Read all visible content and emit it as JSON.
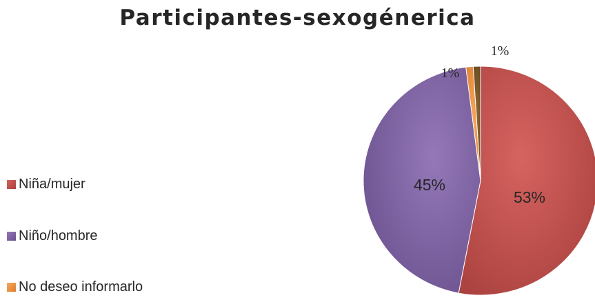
{
  "chart_data": {
    "type": "pie",
    "title": "Participantes-sexogénerica",
    "categories": [
      "Niña/mujer",
      "Niño/hombre",
      "No deseo informarlo"
    ],
    "values": [
      53,
      45,
      1
    ],
    "slices": [
      {
        "label": "Niña/mujer",
        "value": 53,
        "value_label": "53%",
        "color": "#c0504d"
      },
      {
        "label": "Niño/hombre",
        "value": 45,
        "value_label": "45%",
        "color": "#8064a2"
      },
      {
        "label": "No deseo informarlo",
        "value": 1,
        "value_label": "1%",
        "color": "#f79646"
      },
      {
        "label": "",
        "value": 1,
        "value_label": "1%",
        "color": "#7a5a2a"
      }
    ],
    "legend": {
      "placement": "left",
      "items": [
        "Niña/mujer",
        "Niño/hombre",
        "No deseo informarlo"
      ]
    }
  }
}
